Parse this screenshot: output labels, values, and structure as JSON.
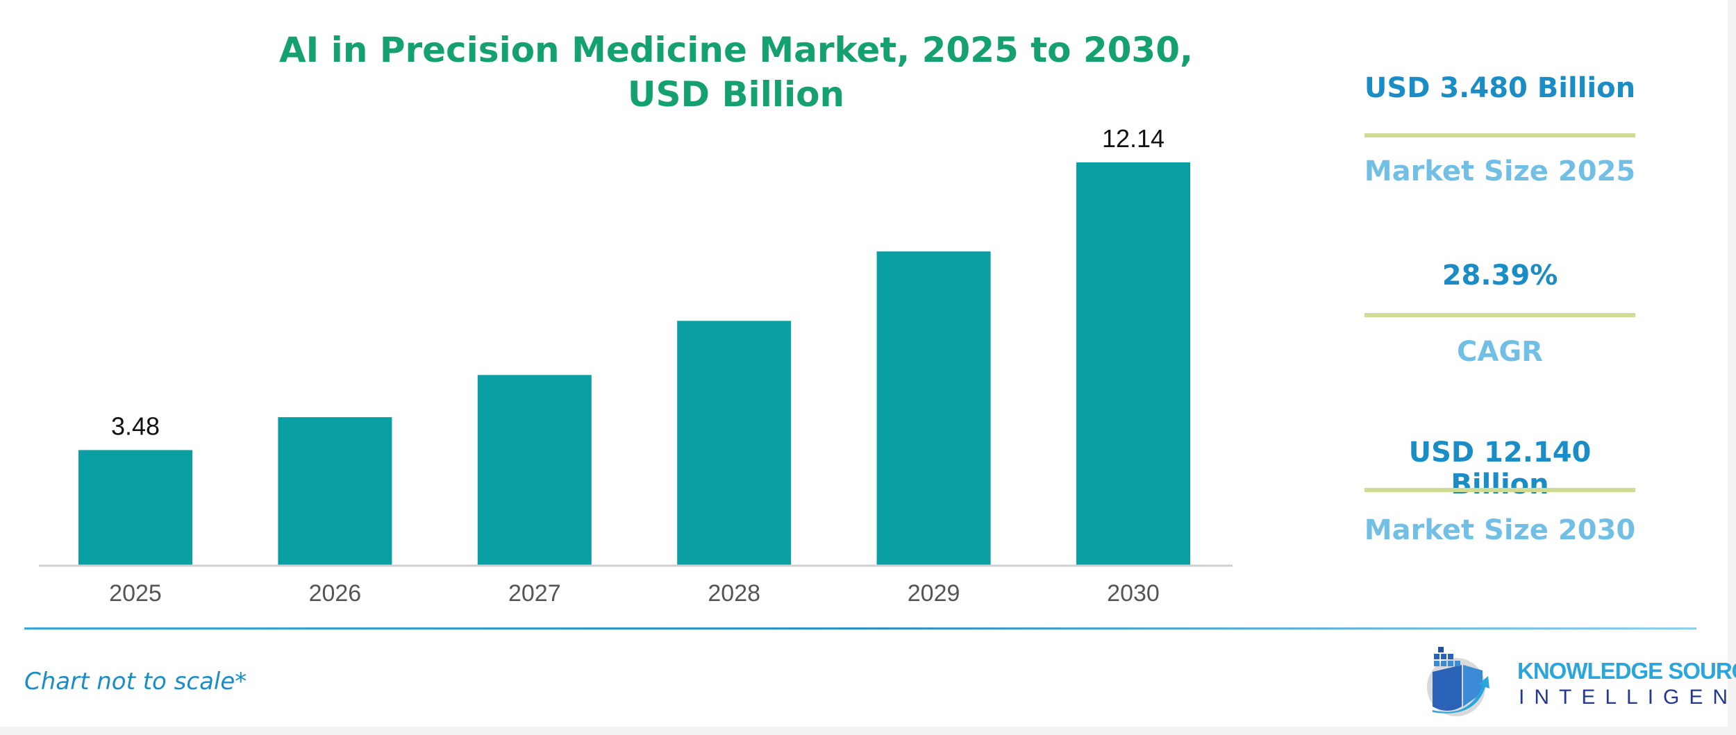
{
  "chart_data": {
    "type": "bar",
    "title": [
      "AI in Precision Medicine Market, 2025 to 2030,",
      "USD Billion"
    ],
    "categories": [
      "2025",
      "2026",
      "2027",
      "2028",
      "2029",
      "2030"
    ],
    "values": [
      3.48,
      4.47,
      5.74,
      7.37,
      9.46,
      12.14
    ],
    "data_labels": [
      "3.48",
      "",
      "",
      "",
      "",
      "12.14"
    ],
    "bar_color": "#0a9fa3",
    "ylim": [
      0,
      12.14
    ],
    "grid": false,
    "note": "Chart not to scale*"
  },
  "kpis": [
    {
      "value": "USD 3.480 Billion",
      "label": "Market Size 2025"
    },
    {
      "value": "28.39%",
      "label": "CAGR"
    },
    {
      "value": "USD 12.140 Billion",
      "label": "Market Size 2030"
    }
  ],
  "colors": {
    "title": "#14a06f",
    "kpi_value": "#1a8cc6",
    "kpi_label": "#72bfe6",
    "divider": "#cfdb93"
  },
  "logo": {
    "line1": "KNOWLEDGE SOURCING",
    "line2": "INTELLIGENCE"
  }
}
